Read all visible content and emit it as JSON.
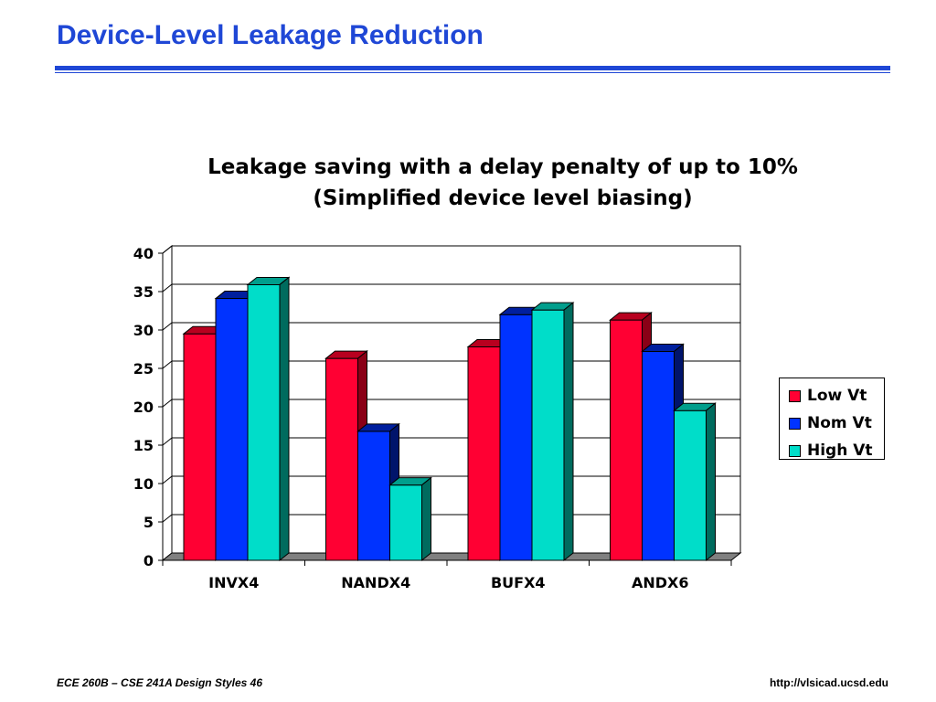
{
  "slide": {
    "title": "Device-Level Leakage Reduction",
    "footer_left": "ECE 260B – CSE 241A Design Styles 46",
    "footer_right": "http://vlsicad.ucsd.edu"
  },
  "colors": {
    "title_blue": "#1f47d6",
    "low_vt": "#ff0033",
    "nom_vt": "#0033ff",
    "high_vt": "#00ddc9"
  },
  "chart_data": {
    "type": "bar",
    "style": "3d-clustered",
    "title_lines": [
      "Leakage saving with a delay penalty of up to 10%",
      "(Simplified device level biasing)"
    ],
    "categories": [
      "INVX4",
      "NANDX4",
      "BUFX4",
      "ANDX6"
    ],
    "series": [
      {
        "name": "Low Vt",
        "values": [
          29.5,
          26.3,
          27.8,
          31.3
        ]
      },
      {
        "name": "Nom Vt",
        "values": [
          34.1,
          16.8,
          32.0,
          27.2
        ]
      },
      {
        "name": "High Vt",
        "values": [
          35.9,
          9.8,
          32.6,
          19.5
        ]
      }
    ],
    "ylim": [
      0,
      40
    ],
    "yticks": [
      "0",
      "5",
      "10",
      "15",
      "20",
      "25",
      "30",
      "35",
      "40"
    ],
    "grid": true,
    "legend_position": "right"
  }
}
